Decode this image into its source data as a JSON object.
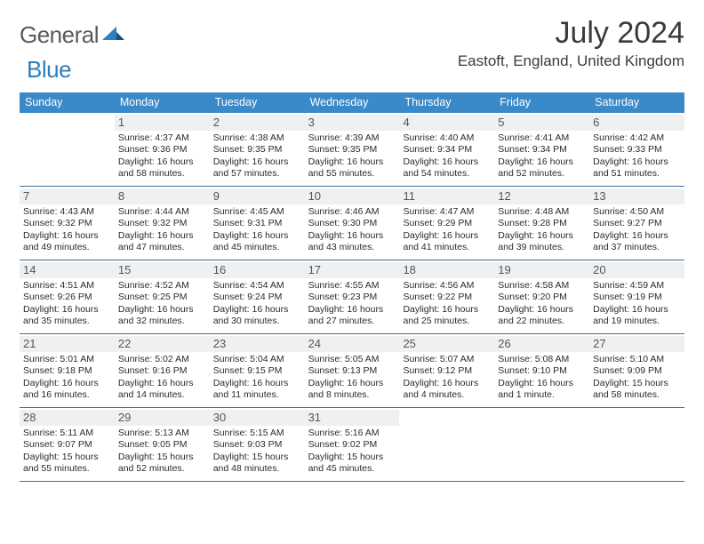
{
  "brand": {
    "part1": "General",
    "part2": "Blue"
  },
  "title": "July 2024",
  "location": "Eastoft, England, United Kingdom",
  "colors": {
    "header_bg": "#3a89c9",
    "header_text": "#ffffff",
    "week_divider": "#3a6fa0",
    "daynum_bg": "#eef0f2",
    "daynum_color": "#555555",
    "body_text": "#2b2b2b",
    "logo_gray": "#5a5a5a",
    "logo_blue": "#2f7fba",
    "title_color": "#3a3a3a"
  },
  "typography": {
    "title_fontsize": 34,
    "location_fontsize": 17,
    "dow_fontsize": 12.5,
    "daynum_fontsize": 13,
    "info_fontsize": 10.5
  },
  "dow": [
    "Sunday",
    "Monday",
    "Tuesday",
    "Wednesday",
    "Thursday",
    "Friday",
    "Saturday"
  ],
  "weeks": [
    [
      null,
      {
        "n": "1",
        "sr": "Sunrise: 4:37 AM",
        "ss": "Sunset: 9:36 PM",
        "d1": "Daylight: 16 hours",
        "d2": "and 58 minutes."
      },
      {
        "n": "2",
        "sr": "Sunrise: 4:38 AM",
        "ss": "Sunset: 9:35 PM",
        "d1": "Daylight: 16 hours",
        "d2": "and 57 minutes."
      },
      {
        "n": "3",
        "sr": "Sunrise: 4:39 AM",
        "ss": "Sunset: 9:35 PM",
        "d1": "Daylight: 16 hours",
        "d2": "and 55 minutes."
      },
      {
        "n": "4",
        "sr": "Sunrise: 4:40 AM",
        "ss": "Sunset: 9:34 PM",
        "d1": "Daylight: 16 hours",
        "d2": "and 54 minutes."
      },
      {
        "n": "5",
        "sr": "Sunrise: 4:41 AM",
        "ss": "Sunset: 9:34 PM",
        "d1": "Daylight: 16 hours",
        "d2": "and 52 minutes."
      },
      {
        "n": "6",
        "sr": "Sunrise: 4:42 AM",
        "ss": "Sunset: 9:33 PM",
        "d1": "Daylight: 16 hours",
        "d2": "and 51 minutes."
      }
    ],
    [
      {
        "n": "7",
        "sr": "Sunrise: 4:43 AM",
        "ss": "Sunset: 9:32 PM",
        "d1": "Daylight: 16 hours",
        "d2": "and 49 minutes."
      },
      {
        "n": "8",
        "sr": "Sunrise: 4:44 AM",
        "ss": "Sunset: 9:32 PM",
        "d1": "Daylight: 16 hours",
        "d2": "and 47 minutes."
      },
      {
        "n": "9",
        "sr": "Sunrise: 4:45 AM",
        "ss": "Sunset: 9:31 PM",
        "d1": "Daylight: 16 hours",
        "d2": "and 45 minutes."
      },
      {
        "n": "10",
        "sr": "Sunrise: 4:46 AM",
        "ss": "Sunset: 9:30 PM",
        "d1": "Daylight: 16 hours",
        "d2": "and 43 minutes."
      },
      {
        "n": "11",
        "sr": "Sunrise: 4:47 AM",
        "ss": "Sunset: 9:29 PM",
        "d1": "Daylight: 16 hours",
        "d2": "and 41 minutes."
      },
      {
        "n": "12",
        "sr": "Sunrise: 4:48 AM",
        "ss": "Sunset: 9:28 PM",
        "d1": "Daylight: 16 hours",
        "d2": "and 39 minutes."
      },
      {
        "n": "13",
        "sr": "Sunrise: 4:50 AM",
        "ss": "Sunset: 9:27 PM",
        "d1": "Daylight: 16 hours",
        "d2": "and 37 minutes."
      }
    ],
    [
      {
        "n": "14",
        "sr": "Sunrise: 4:51 AM",
        "ss": "Sunset: 9:26 PM",
        "d1": "Daylight: 16 hours",
        "d2": "and 35 minutes."
      },
      {
        "n": "15",
        "sr": "Sunrise: 4:52 AM",
        "ss": "Sunset: 9:25 PM",
        "d1": "Daylight: 16 hours",
        "d2": "and 32 minutes."
      },
      {
        "n": "16",
        "sr": "Sunrise: 4:54 AM",
        "ss": "Sunset: 9:24 PM",
        "d1": "Daylight: 16 hours",
        "d2": "and 30 minutes."
      },
      {
        "n": "17",
        "sr": "Sunrise: 4:55 AM",
        "ss": "Sunset: 9:23 PM",
        "d1": "Daylight: 16 hours",
        "d2": "and 27 minutes."
      },
      {
        "n": "18",
        "sr": "Sunrise: 4:56 AM",
        "ss": "Sunset: 9:22 PM",
        "d1": "Daylight: 16 hours",
        "d2": "and 25 minutes."
      },
      {
        "n": "19",
        "sr": "Sunrise: 4:58 AM",
        "ss": "Sunset: 9:20 PM",
        "d1": "Daylight: 16 hours",
        "d2": "and 22 minutes."
      },
      {
        "n": "20",
        "sr": "Sunrise: 4:59 AM",
        "ss": "Sunset: 9:19 PM",
        "d1": "Daylight: 16 hours",
        "d2": "and 19 minutes."
      }
    ],
    [
      {
        "n": "21",
        "sr": "Sunrise: 5:01 AM",
        "ss": "Sunset: 9:18 PM",
        "d1": "Daylight: 16 hours",
        "d2": "and 16 minutes."
      },
      {
        "n": "22",
        "sr": "Sunrise: 5:02 AM",
        "ss": "Sunset: 9:16 PM",
        "d1": "Daylight: 16 hours",
        "d2": "and 14 minutes."
      },
      {
        "n": "23",
        "sr": "Sunrise: 5:04 AM",
        "ss": "Sunset: 9:15 PM",
        "d1": "Daylight: 16 hours",
        "d2": "and 11 minutes."
      },
      {
        "n": "24",
        "sr": "Sunrise: 5:05 AM",
        "ss": "Sunset: 9:13 PM",
        "d1": "Daylight: 16 hours",
        "d2": "and 8 minutes."
      },
      {
        "n": "25",
        "sr": "Sunrise: 5:07 AM",
        "ss": "Sunset: 9:12 PM",
        "d1": "Daylight: 16 hours",
        "d2": "and 4 minutes."
      },
      {
        "n": "26",
        "sr": "Sunrise: 5:08 AM",
        "ss": "Sunset: 9:10 PM",
        "d1": "Daylight: 16 hours",
        "d2": "and 1 minute."
      },
      {
        "n": "27",
        "sr": "Sunrise: 5:10 AM",
        "ss": "Sunset: 9:09 PM",
        "d1": "Daylight: 15 hours",
        "d2": "and 58 minutes."
      }
    ],
    [
      {
        "n": "28",
        "sr": "Sunrise: 5:11 AM",
        "ss": "Sunset: 9:07 PM",
        "d1": "Daylight: 15 hours",
        "d2": "and 55 minutes."
      },
      {
        "n": "29",
        "sr": "Sunrise: 5:13 AM",
        "ss": "Sunset: 9:05 PM",
        "d1": "Daylight: 15 hours",
        "d2": "and 52 minutes."
      },
      {
        "n": "30",
        "sr": "Sunrise: 5:15 AM",
        "ss": "Sunset: 9:03 PM",
        "d1": "Daylight: 15 hours",
        "d2": "and 48 minutes."
      },
      {
        "n": "31",
        "sr": "Sunrise: 5:16 AM",
        "ss": "Sunset: 9:02 PM",
        "d1": "Daylight: 15 hours",
        "d2": "and 45 minutes."
      },
      null,
      null,
      null
    ]
  ]
}
